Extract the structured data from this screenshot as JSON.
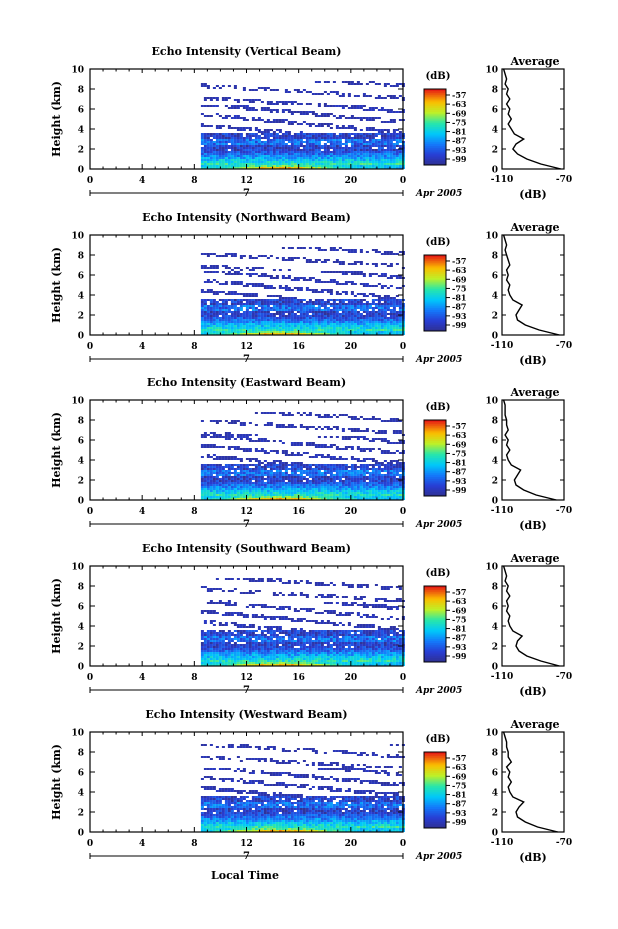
{
  "figure": {
    "xlabel": "Local Time",
    "colorbar_unit": "(dB)",
    "colorbar_ticks": [
      "-57",
      "-63",
      "-69",
      "-75",
      "-81",
      "-87",
      "-93",
      "-99"
    ],
    "avg_title": "Average",
    "avg_xlabel": "(dB)"
  },
  "chart_data": [
    {
      "type": "heatmap",
      "title": "Echo Intensity (Vertical Beam)",
      "ylabel": "Height (km)",
      "xlabel": "",
      "x_ticks": [
        "0",
        "4",
        "8",
        "12",
        "16",
        "20",
        "0"
      ],
      "xlim": [
        0,
        24
      ],
      "y_ticks": [
        "0",
        "2",
        "4",
        "6",
        "8",
        "10"
      ],
      "ylim": [
        0,
        10
      ],
      "date_label": "7",
      "date_suffix": "Apr 2005",
      "data_start_hour": 8.5,
      "colorbar_range": [
        -99,
        -57
      ],
      "average_profile": {
        "xlim": [
          -110,
          -70
        ],
        "x_ticks": [
          "-110",
          "-70"
        ],
        "heights": [
          0,
          0.5,
          1,
          1.5,
          2,
          2.5,
          3,
          3.5,
          4,
          4.5,
          5,
          5.5,
          6,
          6.5,
          7,
          7.5,
          8,
          8.5,
          9,
          9.5,
          10
        ],
        "values": [
          -72,
          -85,
          -94,
          -100,
          -103,
          -101,
          -96,
          -102,
          -104,
          -106,
          -104,
          -106,
          -105,
          -107,
          -105,
          -107,
          -106,
          -108,
          -107,
          -108,
          -109
        ]
      }
    },
    {
      "type": "heatmap",
      "title": "Echo Intensity (Northward Beam)",
      "ylabel": "Height (km)",
      "xlabel": "",
      "x_ticks": [
        "0",
        "4",
        "8",
        "12",
        "16",
        "20",
        "0"
      ],
      "xlim": [
        0,
        24
      ],
      "y_ticks": [
        "0",
        "2",
        "4",
        "6",
        "8",
        "10"
      ],
      "ylim": [
        0,
        10
      ],
      "date_label": "7",
      "date_suffix": "Apr 2005",
      "data_start_hour": 8.5,
      "colorbar_range": [
        -99,
        -57
      ],
      "average_profile": {
        "xlim": [
          -110,
          -70
        ],
        "x_ticks": [
          "-110",
          "-70"
        ],
        "heights": [
          0,
          0.5,
          1,
          1.5,
          2,
          2.5,
          3,
          3.5,
          4,
          4.5,
          5,
          5.5,
          6,
          6.5,
          7,
          7.5,
          8,
          8.5,
          9,
          9.5,
          10
        ],
        "values": [
          -73,
          -86,
          -95,
          -100,
          -101,
          -99,
          -97,
          -103,
          -105,
          -106,
          -105,
          -107,
          -106,
          -107,
          -105,
          -106,
          -107,
          -108,
          -107,
          -108,
          -109
        ]
      }
    },
    {
      "type": "heatmap",
      "title": "Echo Intensity (Eastward Beam)",
      "ylabel": "Height (km)",
      "xlabel": "",
      "x_ticks": [
        "0",
        "4",
        "8",
        "12",
        "16",
        "20",
        "0"
      ],
      "xlim": [
        0,
        24
      ],
      "y_ticks": [
        "0",
        "2",
        "4",
        "6",
        "8",
        "10"
      ],
      "ylim": [
        0,
        10
      ],
      "date_label": "7",
      "date_suffix": "Apr 2005",
      "data_start_hour": 8.5,
      "colorbar_range": [
        -99,
        -57
      ],
      "average_profile": {
        "xlim": [
          -110,
          -70
        ],
        "x_ticks": [
          "-110",
          "-70"
        ],
        "heights": [
          0,
          0.5,
          1,
          1.5,
          2,
          2.5,
          3,
          3.5,
          4,
          4.5,
          5,
          5.5,
          6,
          6.5,
          7,
          7.5,
          8,
          8.5,
          9,
          9.5,
          10
        ],
        "values": [
          -75,
          -88,
          -96,
          -101,
          -102,
          -100,
          -98,
          -104,
          -106,
          -107,
          -105,
          -107,
          -106,
          -108,
          -106,
          -107,
          -107,
          -108,
          -108,
          -108,
          -109
        ]
      }
    },
    {
      "type": "heatmap",
      "title": "Echo Intensity (Southward Beam)",
      "ylabel": "Height (km)",
      "xlabel": "",
      "x_ticks": [
        "0",
        "4",
        "8",
        "12",
        "16",
        "20",
        "0"
      ],
      "xlim": [
        0,
        24
      ],
      "y_ticks": [
        "0",
        "2",
        "4",
        "6",
        "8",
        "10"
      ],
      "ylim": [
        0,
        10
      ],
      "date_label": "7",
      "date_suffix": "Apr 2005",
      "data_start_hour": 8.5,
      "colorbar_range": [
        -99,
        -57
      ],
      "average_profile": {
        "xlim": [
          -110,
          -70
        ],
        "x_ticks": [
          "-110",
          "-70"
        ],
        "heights": [
          0,
          0.5,
          1,
          1.5,
          2,
          2.5,
          3,
          3.5,
          4,
          4.5,
          5,
          5.5,
          6,
          6.5,
          7,
          7.5,
          8,
          8.5,
          9,
          9.5,
          10
        ],
        "values": [
          -73,
          -85,
          -94,
          -99,
          -101,
          -100,
          -97,
          -103,
          -105,
          -106,
          -105,
          -107,
          -106,
          -107,
          -105,
          -107,
          -106,
          -108,
          -107,
          -108,
          -109
        ]
      }
    },
    {
      "type": "heatmap",
      "title": "Echo Intensity (Westward Beam)",
      "ylabel": "Height (km)",
      "xlabel": "",
      "x_ticks": [
        "0",
        "4",
        "8",
        "12",
        "16",
        "20",
        "0"
      ],
      "xlim": [
        0,
        24
      ],
      "y_ticks": [
        "0",
        "2",
        "4",
        "6",
        "8",
        "10"
      ],
      "ylim": [
        0,
        10
      ],
      "date_label": "7",
      "date_suffix": "Apr 2005",
      "data_start_hour": 8.5,
      "colorbar_range": [
        -99,
        -57
      ],
      "average_profile": {
        "xlim": [
          -110,
          -70
        ],
        "x_ticks": [
          "-110",
          "-70"
        ],
        "heights": [
          0,
          0.5,
          1,
          1.5,
          2,
          2.5,
          3,
          3.5,
          4,
          4.5,
          5,
          5.5,
          6,
          6.5,
          7,
          7.5,
          8,
          8.5,
          9,
          9.5,
          10
        ],
        "values": [
          -74,
          -87,
          -95,
          -100,
          -101,
          -99,
          -96,
          -103,
          -105,
          -106,
          -104,
          -106,
          -105,
          -107,
          -104,
          -106,
          -106,
          -107,
          -107,
          -108,
          -109
        ]
      }
    }
  ]
}
